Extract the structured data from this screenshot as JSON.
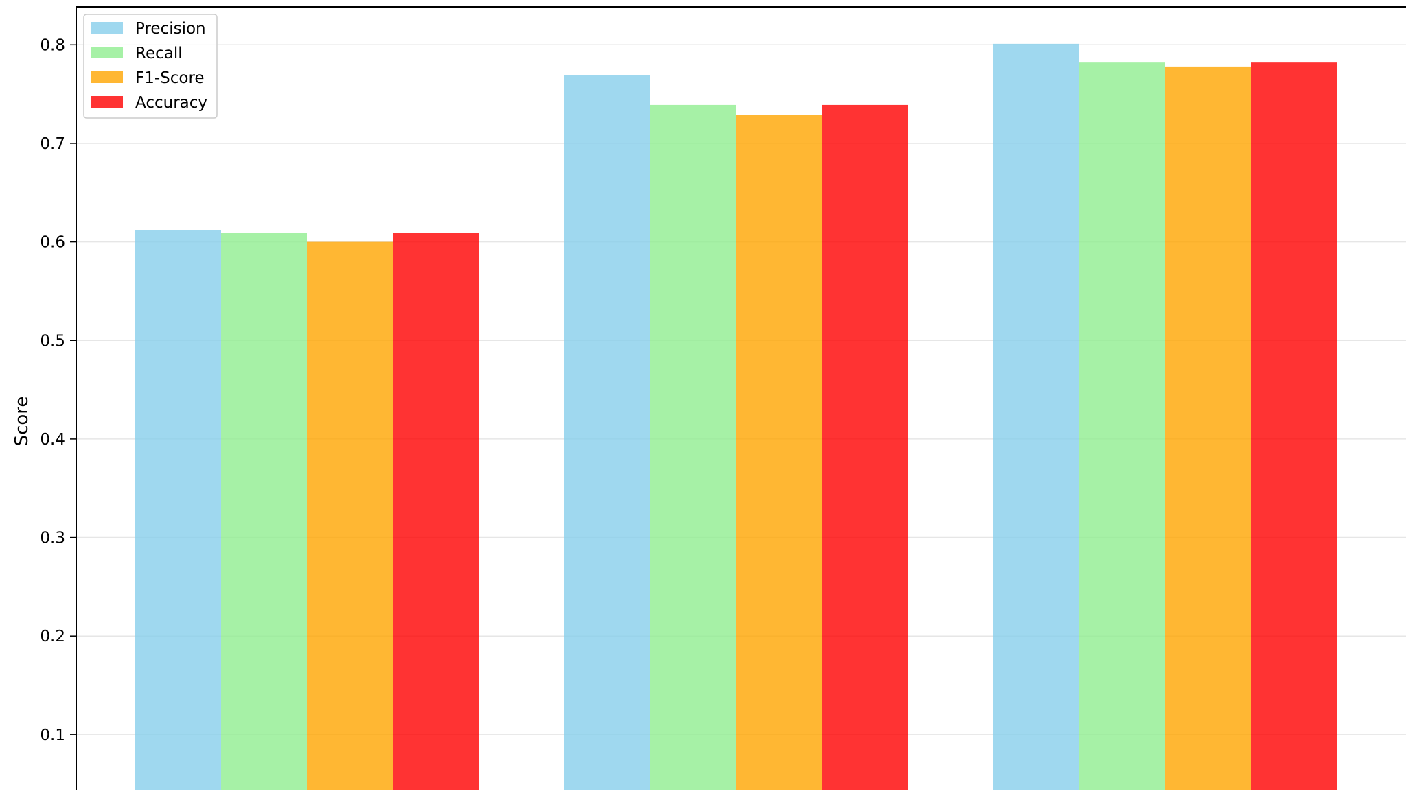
{
  "chart_data": {
    "type": "bar",
    "title": "",
    "xlabel": "",
    "ylabel": "Score",
    "ylim": [
      0,
      0.85
    ],
    "grid": "horizontal",
    "legend_position": "upper-left",
    "categories": [
      "",
      "",
      ""
    ],
    "yticks": [
      "0.1",
      "0.2",
      "0.3",
      "0.4",
      "0.5",
      "0.6",
      "0.7",
      "0.8"
    ],
    "series": [
      {
        "name": "Precision",
        "color": "#87ceeb",
        "values": [
          0.612,
          0.769,
          0.801
        ]
      },
      {
        "name": "Recall",
        "color": "#90ee90",
        "values": [
          0.609,
          0.739,
          0.782
        ]
      },
      {
        "name": "F1-Score",
        "color": "#ffa500",
        "values": [
          0.6,
          0.729,
          0.778
        ]
      },
      {
        "name": "Accuracy",
        "color": "#ff0000",
        "values": [
          0.609,
          0.739,
          0.782
        ]
      }
    ]
  }
}
